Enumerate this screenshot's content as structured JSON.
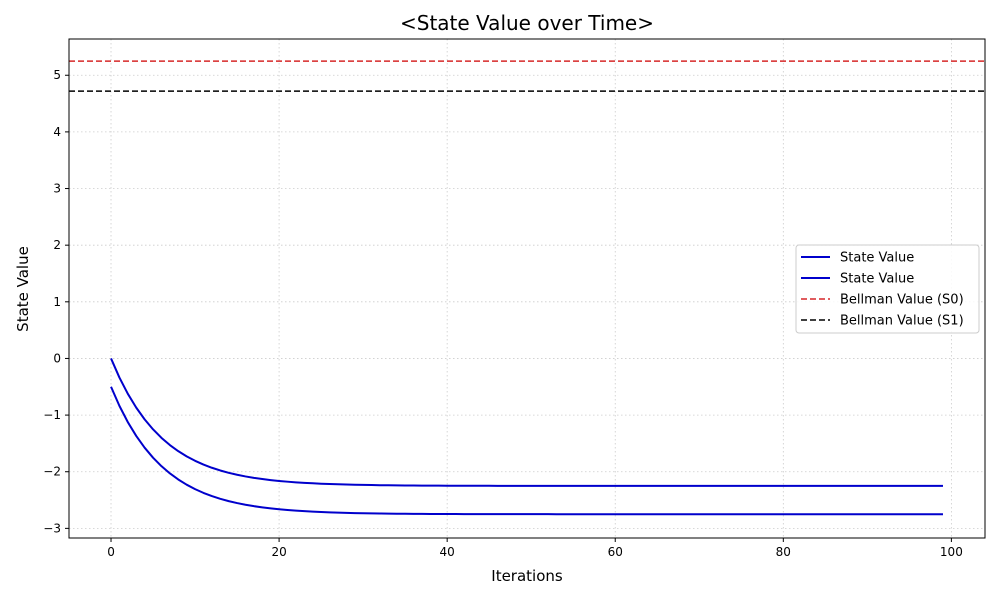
{
  "chart_data": {
    "type": "line",
    "title": "<State Value over Time>",
    "xlabel": "Iterations",
    "ylabel": "State Value",
    "xlim": [
      -5,
      104
    ],
    "ylim": [
      -3.17,
      5.64
    ],
    "xticks": [
      0,
      20,
      40,
      60,
      80,
      100
    ],
    "yticks": [
      -3,
      -2,
      -1,
      0,
      1,
      2,
      3,
      4,
      5
    ],
    "grid": true,
    "legend_position": "center-right",
    "series": [
      {
        "name": "State Value",
        "color": "#0000cc",
        "style": "solid",
        "start": 0.0,
        "end": -2.25,
        "decay": 0.85,
        "x_range": [
          0,
          99
        ]
      },
      {
        "name": "State Value",
        "color": "#0000cc",
        "style": "solid",
        "start": -0.5,
        "end": -2.75,
        "decay": 0.85,
        "x_range": [
          0,
          99
        ]
      }
    ],
    "hlines": [
      {
        "name": "Bellman Value (S0)",
        "y": 5.25,
        "color": "#d62728",
        "style": "dashed"
      },
      {
        "name": "Bellman Value (S1)",
        "y": 4.72,
        "color": "#000000",
        "style": "dashed"
      }
    ],
    "legend": [
      "State Value",
      "State Value",
      "Bellman Value (S0)",
      "Bellman Value (S1)"
    ]
  }
}
